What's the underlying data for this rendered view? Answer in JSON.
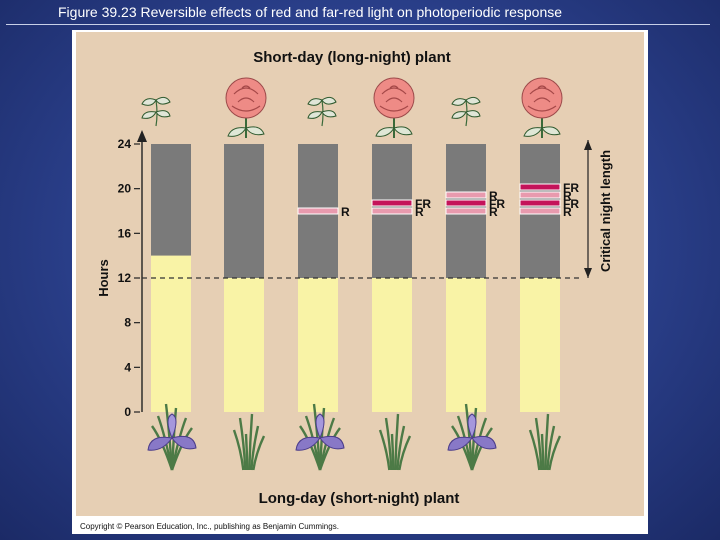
{
  "slide": {
    "title": "Figure 39.23  Reversible effects of red and far-red light on photoperiodic response"
  },
  "figure": {
    "top_heading": "Short-day (long-night) plant",
    "bottom_heading": "Long-day (short-night) plant",
    "y_axis_label": "Hours",
    "y_ticks": [
      "24",
      "20",
      "16",
      "12",
      "8",
      "4",
      "0"
    ],
    "critical_label": "Critical night length",
    "critical_night_hours": 12,
    "colors": {
      "day": "#f9f3a6",
      "night": "#7a7a7a",
      "red_flash": "#e89aae",
      "far_red_flash": "#c4135a",
      "background": "#e6cfb4",
      "rose": "#ee8b86",
      "iris": "#8878c7"
    },
    "bars": [
      {
        "day_end_hours": 14,
        "flashes": []
      },
      {
        "day_end_hours": 12,
        "flashes": []
      },
      {
        "day_end_hours": 12,
        "flashes": [
          {
            "type": "R",
            "label": "R"
          }
        ]
      },
      {
        "day_end_hours": 12,
        "flashes": [
          {
            "type": "R",
            "label": "R"
          },
          {
            "type": "FR",
            "label": "FR"
          }
        ]
      },
      {
        "day_end_hours": 12,
        "flashes": [
          {
            "type": "R",
            "label": "R"
          },
          {
            "type": "FR",
            "label": "FR"
          },
          {
            "type": "R",
            "label": "R"
          }
        ]
      },
      {
        "day_end_hours": 12,
        "flashes": [
          {
            "type": "R",
            "label": "R"
          },
          {
            "type": "FR",
            "label": "FR"
          },
          {
            "type": "R",
            "label": "R"
          },
          {
            "type": "FR",
            "label": "FR"
          }
        ]
      }
    ],
    "copyright": "Copyright © Pearson Education, Inc., publishing as Benjamin Cummings."
  }
}
